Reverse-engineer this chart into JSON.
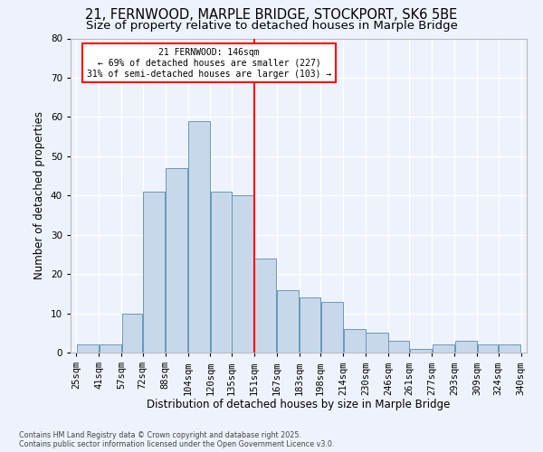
{
  "title": "21, FERNWOOD, MARPLE BRIDGE, STOCKPORT, SK6 5BE",
  "subtitle": "Size of property relative to detached houses in Marple Bridge",
  "xlabel": "Distribution of detached houses by size in Marple Bridge",
  "ylabel": "Number of detached properties",
  "bar_color": "#c8d8ea",
  "bar_edge_color": "#6699bb",
  "vline_x": 151,
  "vline_color": "red",
  "annotation_text": "21 FERNWOOD: 146sqm\n← 69% of detached houses are smaller (227)\n31% of semi-detached houses are larger (103) →",
  "annotation_box_color": "white",
  "annotation_box_edge": "red",
  "footnote": "Contains HM Land Registry data © Crown copyright and database right 2025.\nContains public sector information licensed under the Open Government Licence v3.0.",
  "bins": [
    25,
    41,
    57,
    72,
    88,
    104,
    120,
    135,
    151,
    167,
    183,
    198,
    214,
    230,
    246,
    261,
    277,
    293,
    309,
    324,
    340
  ],
  "counts": [
    2,
    2,
    10,
    41,
    47,
    59,
    41,
    40,
    24,
    16,
    14,
    13,
    6,
    5,
    3,
    1,
    2,
    3,
    2,
    2
  ],
  "ylim": [
    0,
    80
  ],
  "yticks": [
    0,
    10,
    20,
    30,
    40,
    50,
    60,
    70,
    80
  ],
  "background_color": "#eef2fc",
  "grid_color": "white",
  "title_fontsize": 10.5,
  "subtitle_fontsize": 9.5,
  "label_fontsize": 8.5,
  "tick_fontsize": 7.5,
  "annot_fontsize": 7.0,
  "footnote_fontsize": 5.8
}
